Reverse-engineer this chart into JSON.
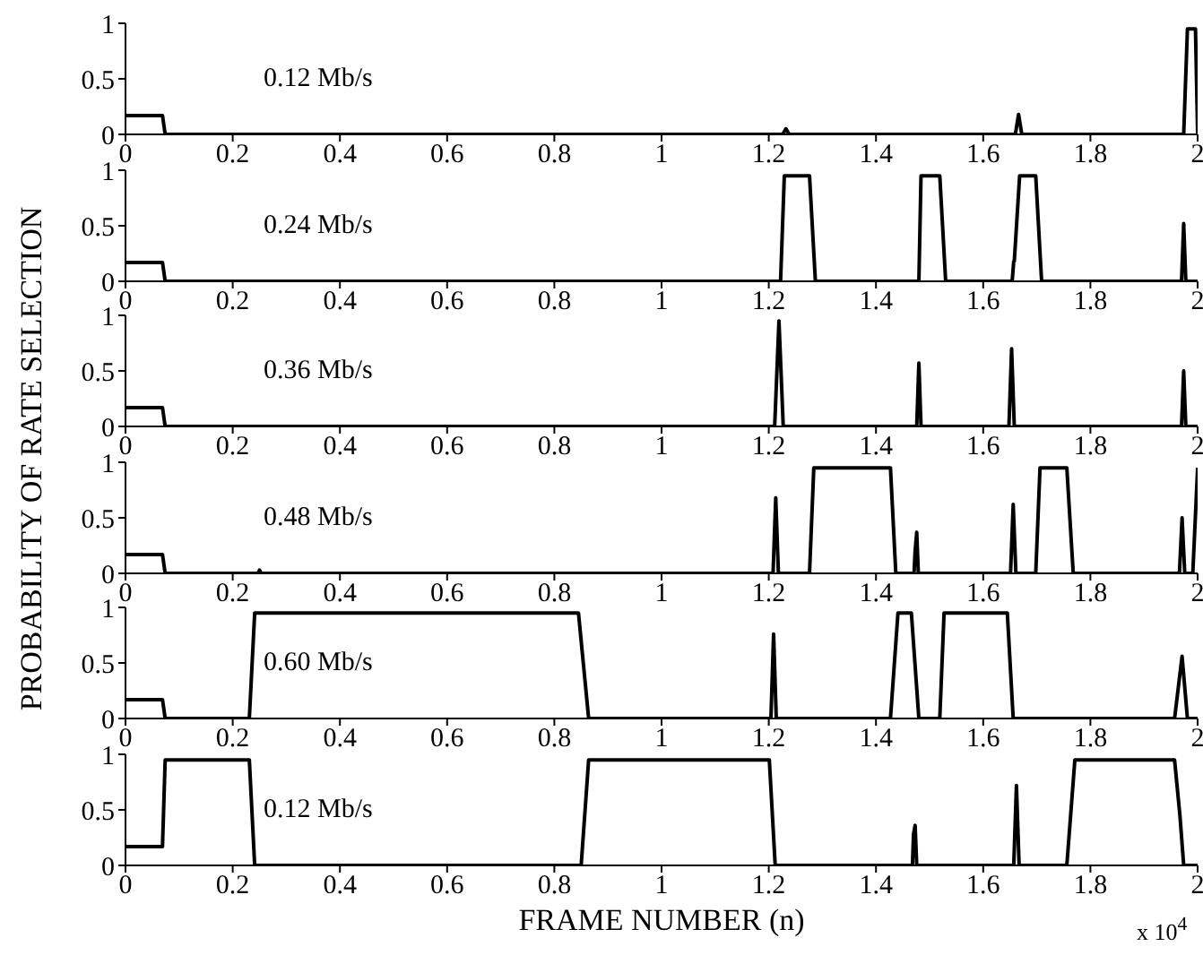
{
  "chart_data": [
    {
      "type": "line",
      "title": "0.12 Mb/s",
      "ylabel": "PROBABILITY OF RATE SELECTION",
      "xlim": [
        0,
        2
      ],
      "ylim": [
        0,
        1
      ],
      "xticks": [
        0,
        0.2,
        0.4,
        0.6,
        0.8,
        1,
        1.2,
        1.4,
        1.6,
        1.8,
        2
      ],
      "yticks": [
        0,
        0.5,
        1
      ],
      "grid": false,
      "marker": "none",
      "line_style": "solid",
      "series": [
        {
          "color": "#000000",
          "x": [
            0,
            0.069,
            0.074,
            1.226,
            1.232,
            1.238,
            1.66,
            1.666,
            1.672,
            1.974,
            1.981,
            1.996,
            2
          ],
          "values": [
            0.17,
            0.17,
            0,
            0,
            0.05,
            0,
            0,
            0.18,
            0,
            0,
            0.95,
            0.95,
            0
          ]
        }
      ]
    },
    {
      "type": "line",
      "title": "0.24 Mb/s",
      "xlim": [
        0,
        2
      ],
      "ylim": [
        0,
        1
      ],
      "xticks": [
        0,
        0.2,
        0.4,
        0.6,
        0.8,
        1,
        1.2,
        1.4,
        1.6,
        1.8,
        2
      ],
      "yticks": [
        0,
        0.5,
        1
      ],
      "grid": false,
      "marker": "none",
      "line_style": "solid",
      "series": [
        {
          "color": "#000000",
          "x": [
            0,
            0.069,
            0.074,
            1.222,
            1.229,
            1.276,
            1.287,
            1.48,
            1.484,
            1.519,
            1.53,
            1.654,
            1.657,
            1.658,
            1.668,
            1.698,
            1.709,
            1.97,
            1.974,
            1.978,
            2
          ],
          "values": [
            0.17,
            0.17,
            0,
            0,
            0.95,
            0.95,
            0,
            0,
            0.95,
            0.95,
            0,
            0,
            0.18,
            0.18,
            0.95,
            0.95,
            0,
            0,
            0.52,
            0,
            0
          ]
        }
      ]
    },
    {
      "type": "line",
      "title": "0.36 Mb/s",
      "xlim": [
        0,
        2
      ],
      "ylim": [
        0,
        1
      ],
      "xticks": [
        0,
        0.2,
        0.4,
        0.6,
        0.8,
        1,
        1.2,
        1.4,
        1.6,
        1.8,
        2
      ],
      "yticks": [
        0,
        0.5,
        1
      ],
      "grid": false,
      "marker": "none",
      "line_style": "solid",
      "series": [
        {
          "color": "#000000",
          "x": [
            0,
            0.069,
            0.074,
            1.211,
            1.219,
            1.227,
            1.476,
            1.48,
            1.484,
            1.648,
            1.653,
            1.658,
            1.97,
            1.974,
            1.978,
            2
          ],
          "values": [
            0.17,
            0.17,
            0,
            0,
            0.95,
            0,
            0,
            0.57,
            0,
            0,
            0.7,
            0,
            0,
            0.5,
            0,
            0
          ]
        }
      ]
    },
    {
      "type": "line",
      "title": "0.48 Mb/s",
      "xlim": [
        0,
        2
      ],
      "ylim": [
        0,
        1
      ],
      "xticks": [
        0,
        0.2,
        0.4,
        0.6,
        0.8,
        1,
        1.2,
        1.4,
        1.6,
        1.8,
        2
      ],
      "yticks": [
        0,
        0.5,
        1
      ],
      "grid": false,
      "marker": "none",
      "line_style": "solid",
      "series": [
        {
          "color": "#000000",
          "x": [
            0,
            0.069,
            0.074,
            0.247,
            0.25,
            0.253,
            1.208,
            1.213,
            1.218,
            1.276,
            1.284,
            1.427,
            1.437,
            1.471,
            1.473,
            1.476,
            1.479,
            1.651,
            1.656,
            1.661,
            1.698,
            1.706,
            1.756,
            1.768,
            1.966,
            1.971,
            1.976,
            1.991,
            2
          ],
          "values": [
            0.17,
            0.17,
            0,
            0,
            0.03,
            0,
            0,
            0.68,
            0,
            0,
            0.95,
            0.95,
            0,
            0,
            0.2,
            0.37,
            0,
            0,
            0.62,
            0,
            0,
            0.95,
            0.95,
            0,
            0,
            0.5,
            0,
            0,
            0.95
          ]
        }
      ]
    },
    {
      "type": "line",
      "title": "0.60 Mb/s",
      "xlim": [
        0,
        2
      ],
      "ylim": [
        0,
        1
      ],
      "xticks": [
        0,
        0.2,
        0.4,
        0.6,
        0.8,
        1,
        1.2,
        1.4,
        1.6,
        1.8,
        2
      ],
      "yticks": [
        0,
        0.5,
        1
      ],
      "grid": false,
      "marker": "none",
      "line_style": "solid",
      "series": [
        {
          "color": "#000000",
          "x": [
            0,
            0.069,
            0.074,
            0.231,
            0.241,
            0.845,
            0.854,
            0.864,
            1.204,
            1.209,
            1.214,
            1.427,
            1.441,
            1.466,
            1.48,
            1.519,
            1.527,
            1.645,
            1.656,
            1.957,
            1.971,
            1.981,
            2
          ],
          "values": [
            0.17,
            0.17,
            0,
            0,
            0.95,
            0.95,
            0.5,
            0,
            0,
            0.76,
            0,
            0,
            0.95,
            0.95,
            0,
            0,
            0.95,
            0.95,
            0,
            0,
            0.56,
            0,
            0
          ]
        }
      ]
    },
    {
      "type": "line",
      "title": "0.12 Mb/s",
      "xlabel": "FRAME NUMBER (n)",
      "annotations": [
        "x 10$^{4}$"
      ],
      "xlim": [
        0,
        2
      ],
      "ylim": [
        0,
        1
      ],
      "xticks": [
        0,
        0.2,
        0.4,
        0.6,
        0.8,
        1,
        1.2,
        1.4,
        1.6,
        1.8,
        2
      ],
      "yticks": [
        0,
        0.5,
        1
      ],
      "grid": false,
      "marker": "none",
      "line_style": "solid",
      "series": [
        {
          "color": "#000000",
          "x": [
            0,
            0.069,
            0.074,
            0.231,
            0.241,
            0.85,
            0.864,
            1.201,
            1.212,
            1.468,
            1.47,
            1.473,
            1.476,
            1.657,
            1.662,
            1.667,
            1.756,
            1.771,
            1.957,
            1.967,
            1.974,
            2
          ],
          "values": [
            0.17,
            0.17,
            0.95,
            0.95,
            0,
            0,
            0.95,
            0.95,
            0,
            0,
            0.28,
            0.36,
            0,
            0,
            0.72,
            0,
            0,
            0.95,
            0.95,
            0.45,
            0,
            0
          ]
        }
      ]
    }
  ]
}
